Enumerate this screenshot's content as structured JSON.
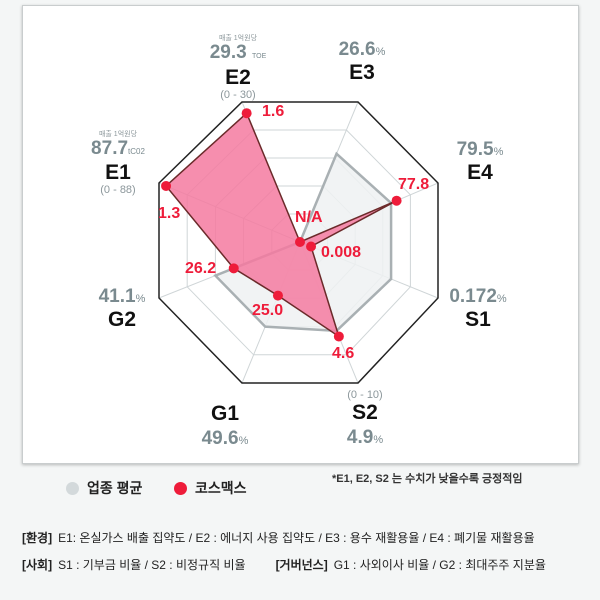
{
  "chart_data": {
    "type": "radar",
    "axes": [
      {
        "code": "E1",
        "value": "87.7",
        "unit": "tC02",
        "unit_note": "매출 1억원당",
        "range": "(0 - 88)"
      },
      {
        "code": "E2",
        "value": "29.3",
        "unit": "TOE",
        "unit_note": "매출 1억원당",
        "range": "(0 - 30)"
      },
      {
        "code": "E3",
        "value": "26.6",
        "unit": "%"
      },
      {
        "code": "E4",
        "value": "79.5",
        "unit": "%"
      },
      {
        "code": "S1",
        "value": "0.172",
        "unit": "%"
      },
      {
        "code": "S2",
        "value": "4.9",
        "unit": "%",
        "range": "(0 - 10)"
      },
      {
        "code": "G1",
        "value": "49.6",
        "unit": "%"
      },
      {
        "code": "G2",
        "value": "41.1",
        "unit": "%"
      }
    ],
    "series": [
      {
        "name": "업종 평균",
        "color": "#d3d9db",
        "levels": [
          0,
          0,
          0.63,
          0.66,
          0.66,
          0.63,
          0.6,
          0.6
        ]
      },
      {
        "name": "코스맥스",
        "color": "#ee1c3a",
        "fill": "#f47aa0",
        "labels": [
          "1.3",
          "1.6",
          "N/A",
          "77.8",
          "0.008",
          "4.6",
          "25.0",
          "26.2"
        ],
        "levels": [
          0.95,
          0.92,
          0,
          0.7,
          0.08,
          0.67,
          0.38,
          0.47
        ]
      }
    ],
    "grid": true
  },
  "note": "*E1, E2, S2 는 수치가 낮을수록 긍정적임",
  "footer": {
    "env_tag": "[환경]",
    "env_text": "E1: 온실가스 배출 집약도 / E2 : 에너지 사용 집약도 / E3 : 용수 재활용율 / E4 : 폐기물 재활용율",
    "soc_tag": "[사회]",
    "soc_text": "S1 : 기부금 비율 / S2 : 비정규직 비율",
    "gov_tag": "[거버넌스]",
    "gov_text": "G1 : 사외이사 비율 / G2 : 최대주주 지분율"
  }
}
